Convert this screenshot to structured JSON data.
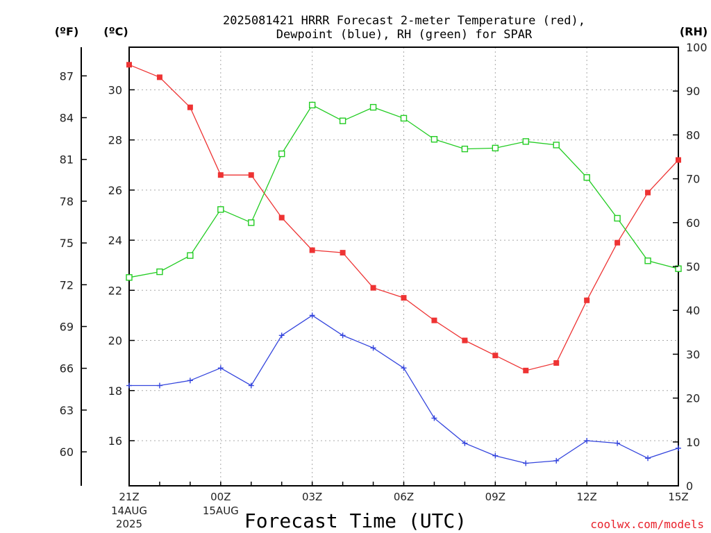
{
  "title_line1": "2025081421 HRRR Forecast 2-meter Temperature (red),",
  "title_line2": "Dewpoint (blue), RH (green) for SPAR",
  "unit_f": "(ºF)",
  "unit_c": "(ºC)",
  "unit_rh": "(RH)",
  "credit": "coolwx.com/models",
  "colors": {
    "temperature": "#ee3333",
    "dewpoint": "#3344dd",
    "rh": "#22cc22"
  },
  "chart_data": {
    "type": "line",
    "title": "2025081421 HRRR Forecast 2-meter Temperature (red), Dewpoint (blue), RH (green) for SPAR",
    "xlabel": "Forecast Time (UTC)",
    "x_hours": [
      "21Z",
      "22Z",
      "23Z",
      "00Z",
      "01Z",
      "02Z",
      "03Z",
      "04Z",
      "05Z",
      "06Z",
      "07Z",
      "08Z",
      "09Z",
      "10Z",
      "11Z",
      "12Z",
      "13Z",
      "14Z",
      "15Z"
    ],
    "x_ticks": [
      {
        "index": 0,
        "label": "21Z",
        "sub1": "14AUG",
        "sub2": "2025"
      },
      {
        "index": 3,
        "label": "00Z",
        "sub1": "15AUG",
        "sub2": ""
      },
      {
        "index": 6,
        "label": "03Z",
        "sub1": "",
        "sub2": ""
      },
      {
        "index": 9,
        "label": "06Z",
        "sub1": "",
        "sub2": ""
      },
      {
        "index": 12,
        "label": "09Z",
        "sub1": "",
        "sub2": ""
      },
      {
        "index": 15,
        "label": "12Z",
        "sub1": "",
        "sub2": ""
      },
      {
        "index": 18,
        "label": "15Z",
        "sub1": "",
        "sub2": ""
      }
    ],
    "y_c_ticks": [
      16,
      18,
      20,
      22,
      24,
      26,
      28,
      30
    ],
    "y_f_ticks": [
      60,
      63,
      66,
      69,
      72,
      75,
      78,
      81,
      84,
      87
    ],
    "y_rh_ticks": [
      0,
      10,
      20,
      30,
      40,
      50,
      60,
      70,
      80,
      90,
      100
    ],
    "ylim_c": [
      14.2,
      31.7
    ],
    "ylim_rh": [
      0,
      100
    ],
    "grid": true,
    "series": [
      {
        "name": "Temperature",
        "axis": "c",
        "marker": "filled-square",
        "values": [
          31.0,
          30.5,
          29.3,
          26.6,
          26.6,
          24.9,
          23.6,
          23.5,
          22.1,
          21.7,
          20.8,
          20.0,
          19.4,
          18.8,
          19.1,
          21.6,
          23.9,
          25.9,
          27.2
        ]
      },
      {
        "name": "Dewpoint",
        "axis": "c",
        "marker": "plus",
        "values": [
          18.2,
          18.2,
          18.4,
          18.9,
          18.2,
          20.2,
          21.0,
          20.2,
          19.7,
          18.9,
          16.9,
          15.9,
          15.4,
          15.1,
          15.2,
          16.0,
          15.9,
          15.3,
          15.7
        ]
      },
      {
        "name": "RH",
        "axis": "rh",
        "marker": "open-square",
        "values": [
          47.5,
          48.8,
          52.5,
          63.0,
          60.0,
          75.7,
          86.8,
          83.2,
          86.3,
          83.8,
          79.0,
          76.8,
          77.0,
          78.5,
          77.7,
          70.3,
          61.0,
          51.3,
          49.5
        ]
      }
    ]
  }
}
